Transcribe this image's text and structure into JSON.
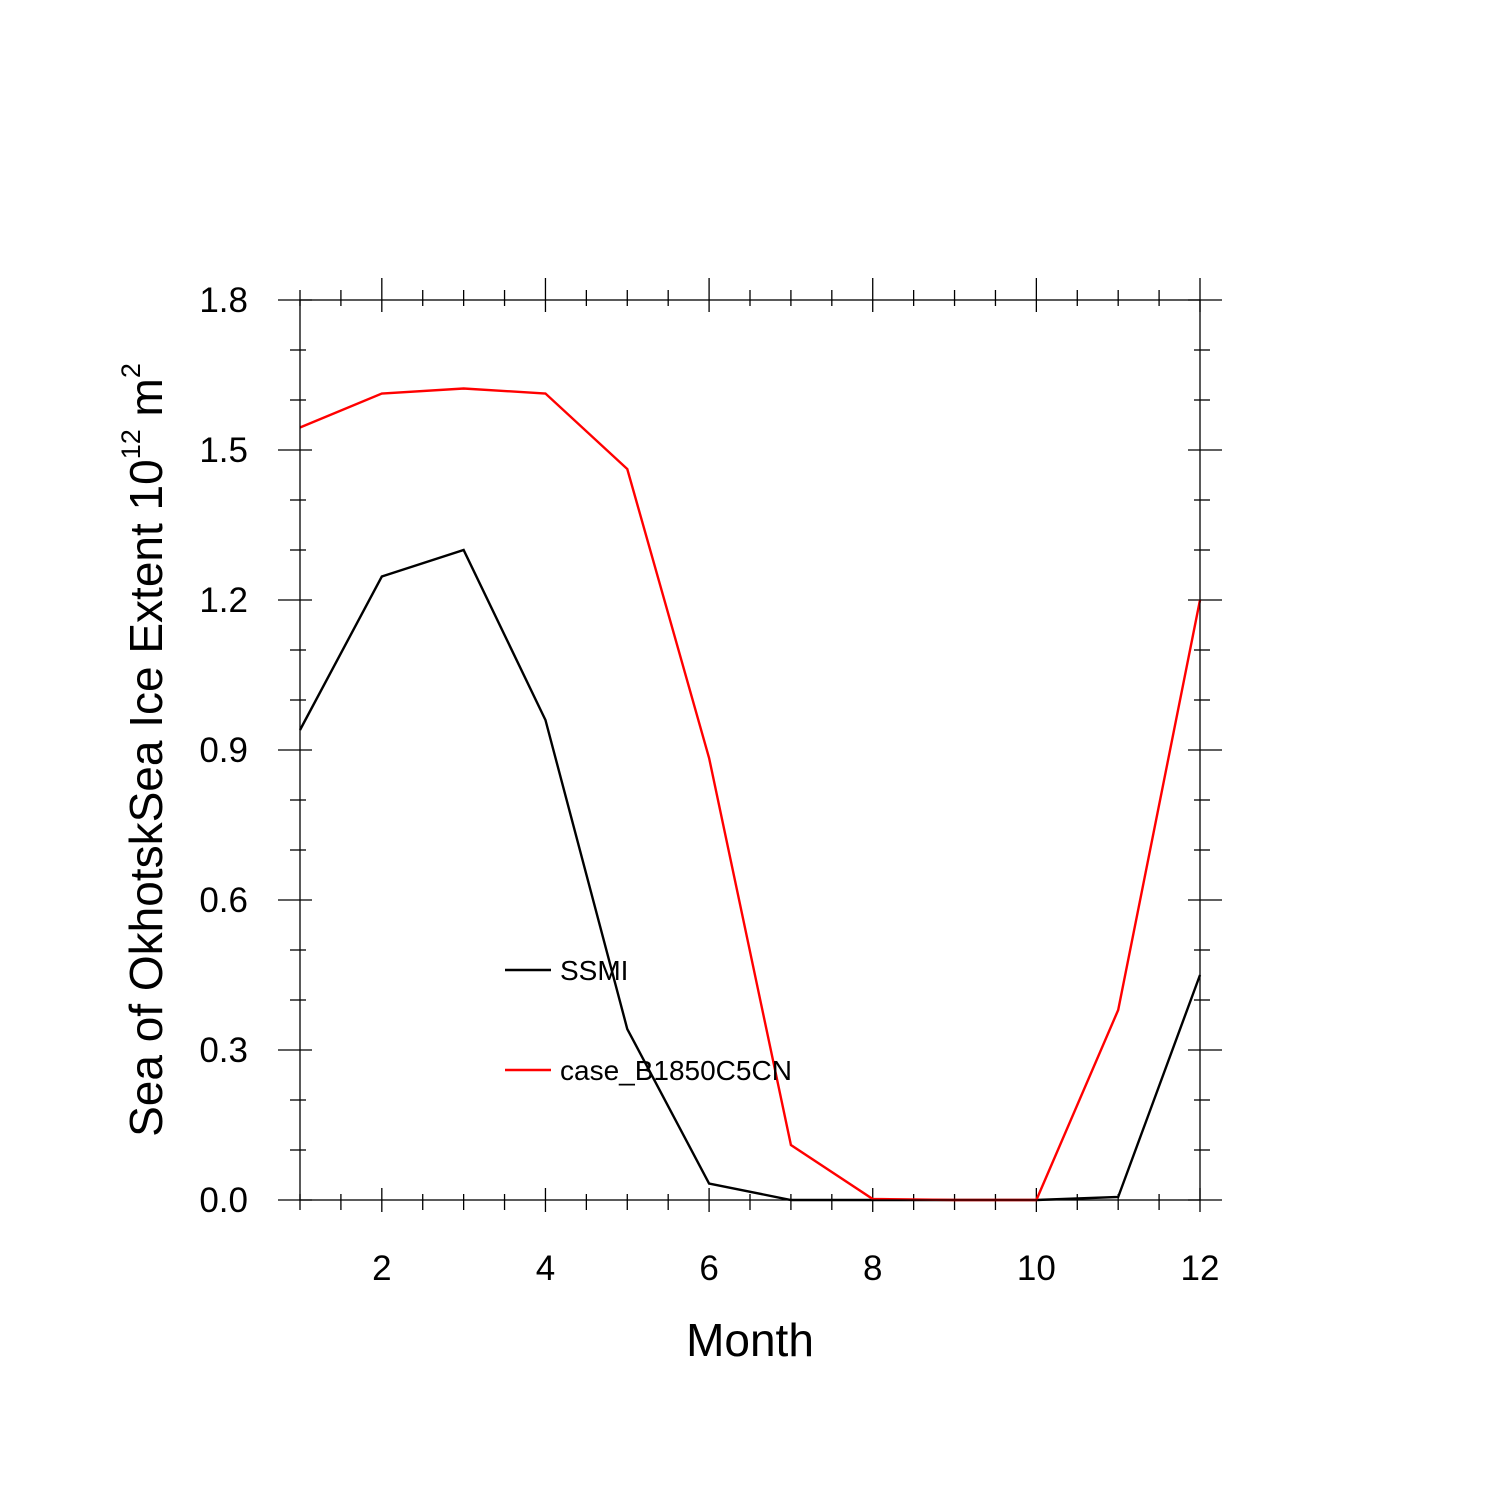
{
  "chart_data": {
    "type": "line",
    "xlabel": "Month",
    "ylabel": {
      "base": "Sea of OkhotskSea Ice Extent 10",
      "exp1": "12",
      "unit": " m",
      "exp2": "2"
    },
    "xlim": [
      1,
      12
    ],
    "ylim": [
      0,
      1.8
    ],
    "xticks": [
      2,
      4,
      6,
      8,
      10,
      12
    ],
    "yticks": [
      "0.0",
      "0.3",
      "0.6",
      "0.9",
      "1.2",
      "1.5",
      "1.8"
    ],
    "x": [
      1,
      2,
      3,
      4,
      5,
      6,
      7,
      8,
      9,
      10,
      11,
      12
    ],
    "series": [
      {
        "name": "SSMI",
        "color": "#000000",
        "values": [
          0.94,
          1.247,
          1.3,
          0.96,
          0.342,
          0.033,
          0.0,
          0.0,
          0.0,
          0.0,
          0.006,
          0.45
        ]
      },
      {
        "name": "case_B1850C5CN",
        "color": "#ff0000",
        "values": [
          1.545,
          1.613,
          1.623,
          1.613,
          1.462,
          0.884,
          0.11,
          0.002,
          0.0,
          0.0,
          0.38,
          1.2
        ]
      }
    ],
    "legend_position": "inside-lower-center",
    "grid": false
  }
}
